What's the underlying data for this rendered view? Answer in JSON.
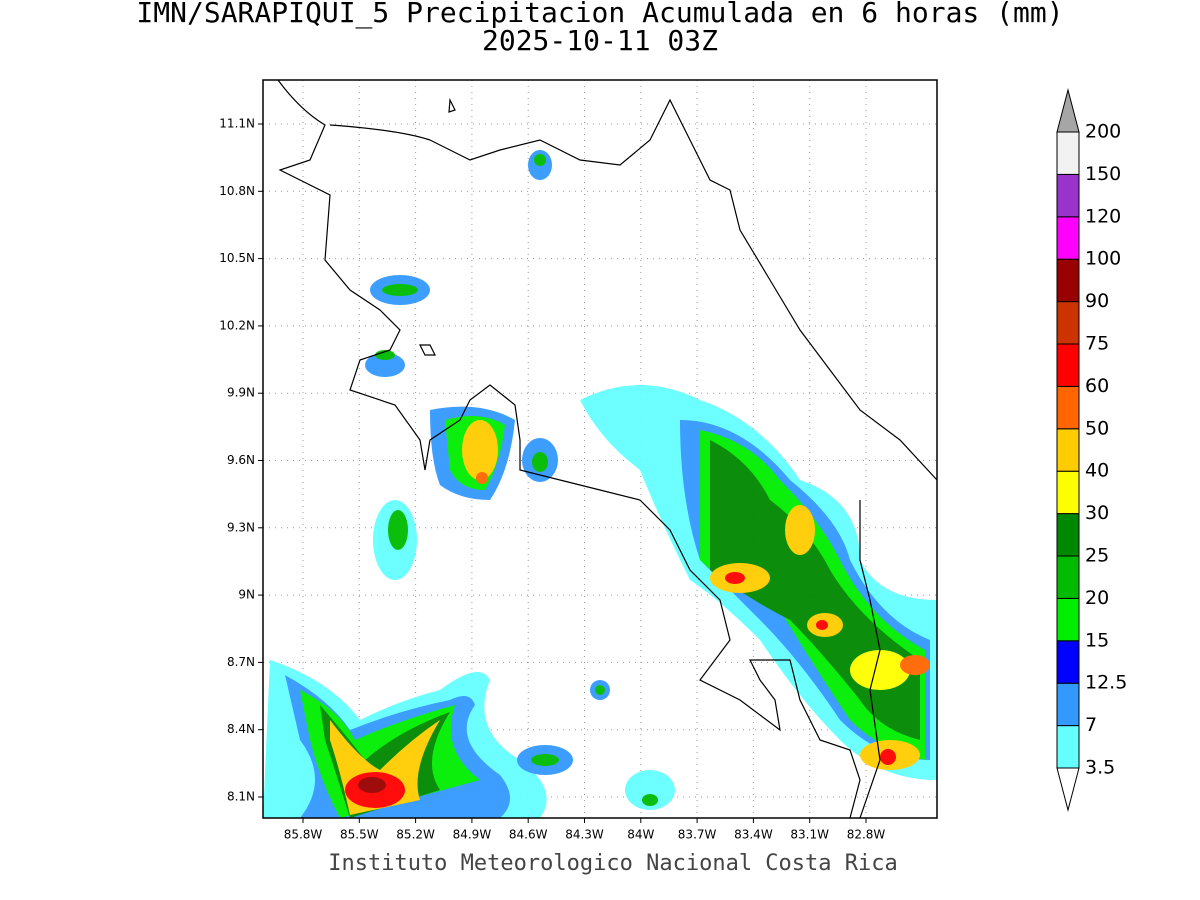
{
  "title": "IMN/SARAPIQUI_5 Precipitacion Acumulada en 6 horas (mm)",
  "subtitle": "2025-10-11 03Z",
  "lat_labels": [
    "11.1N",
    "10.8N",
    "10.5N",
    "10.2N",
    "9.9N",
    "9.6N",
    "9.3N",
    "9N",
    "8.7N",
    "8.4N",
    "8.1N"
  ],
  "lon_labels": [
    "85.8W",
    "85.5W",
    "85.2W",
    "84.9W",
    "84.6W",
    "84.3W",
    "84W",
    "83.7W",
    "83.4W",
    "83.1W",
    "82.8W"
  ],
  "colorbar": {
    "levels": [
      3.5,
      7,
      12.5,
      15,
      20,
      25,
      30,
      40,
      50,
      60,
      75,
      90,
      100,
      120,
      150,
      200
    ],
    "colors": [
      "#66ffff",
      "#3399ff",
      "#0000ff",
      "#00ee00",
      "#00bb00",
      "#008800",
      "#ffff00",
      "#ffcc00",
      "#ff6600",
      "#ff0000",
      "#cc3300",
      "#990000",
      "#ff00ff",
      "#9933cc",
      "#f2f2f2"
    ],
    "under_color": "#ffffff",
    "over_color": "#a6a6a6"
  },
  "footer": "Instituto Meteorologico Nacional Costa Rica"
}
